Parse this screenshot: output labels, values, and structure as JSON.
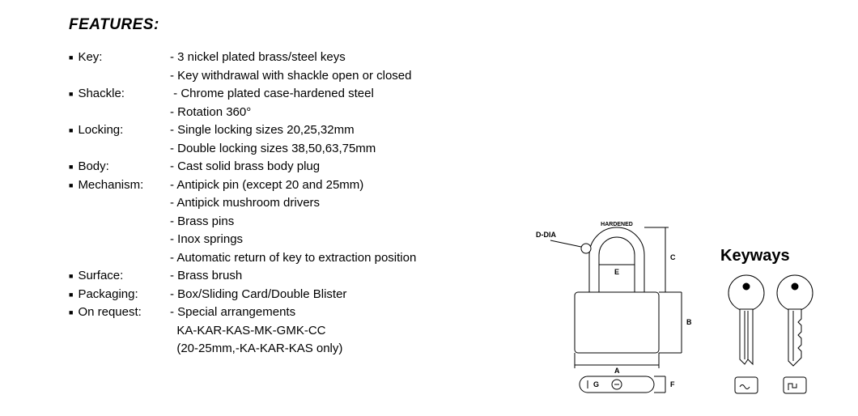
{
  "title": "FEATURES:",
  "features": [
    {
      "label": "Key:",
      "values": [
        "- 3 nickel plated brass/steel keys",
        "- Key withdrawal with shackle open or closed"
      ]
    },
    {
      "label": "Shackle:",
      "values": [
        " - Chrome plated case-hardened steel",
        "- Rotation 360°"
      ]
    },
    {
      "label": "Locking:",
      "values": [
        "- Single locking sizes 20,25,32mm",
        "- Double locking sizes 38,50,63,75mm"
      ]
    },
    {
      "label": "Body:",
      "values": [
        "- Cast solid brass body plug"
      ]
    },
    {
      "label": "Mechanism:",
      "values": [
        "- Antipick pin (except 20 and 25mm)",
        "- Antipick mushroom drivers",
        "- Brass pins",
        "- Inox springs",
        "- Automatic return of key to extraction position"
      ]
    },
    {
      "label": "Surface:",
      "values": [
        "- Brass brush"
      ]
    },
    {
      "label": "Packaging:",
      "values": [
        "- Box/Sliding Card/Double Blister"
      ]
    },
    {
      "label": "On request:",
      "values": [
        "- Special arrangements",
        "  KA-KAR-KAS-MK-GMK-CC",
        "  (20-25mm,-KA-KAR-KAS only)"
      ]
    }
  ],
  "diagram": {
    "d_dia": "D-DIA",
    "hardened": "HARDENED",
    "dims": {
      "A": "A",
      "B": "B",
      "C": "C",
      "E": "E",
      "F": "F",
      "G": "G"
    },
    "keyways_title": "Keyways",
    "stroke": "#000000",
    "fill": "#ffffff",
    "fontsize_small": 8
  }
}
